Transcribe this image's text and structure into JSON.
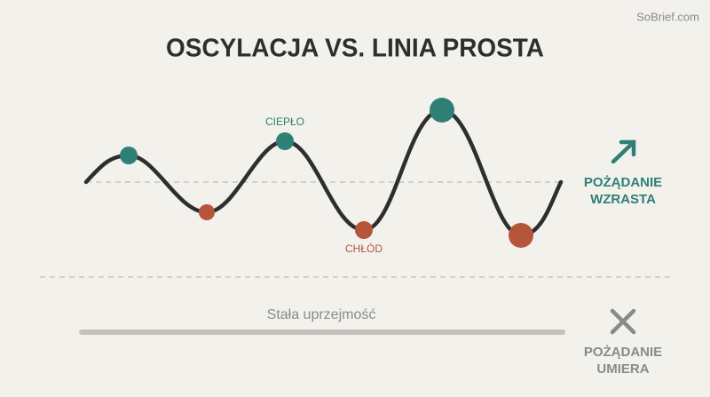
{
  "watermark": "SoBrief.com",
  "title": "OSCYLACJA VS. LINIA PROSTA",
  "wave": {
    "warm_label": "CIEPŁO",
    "cold_label": "CHŁÓD"
  },
  "desire_rises": {
    "lines": [
      "POŻĄDANIE",
      "WZRASTA"
    ]
  },
  "straight_line": {
    "label": "Stała uprzejmość"
  },
  "desire_dies": {
    "lines": [
      "POŻĄDANIE",
      "UMIERA"
    ]
  }
}
